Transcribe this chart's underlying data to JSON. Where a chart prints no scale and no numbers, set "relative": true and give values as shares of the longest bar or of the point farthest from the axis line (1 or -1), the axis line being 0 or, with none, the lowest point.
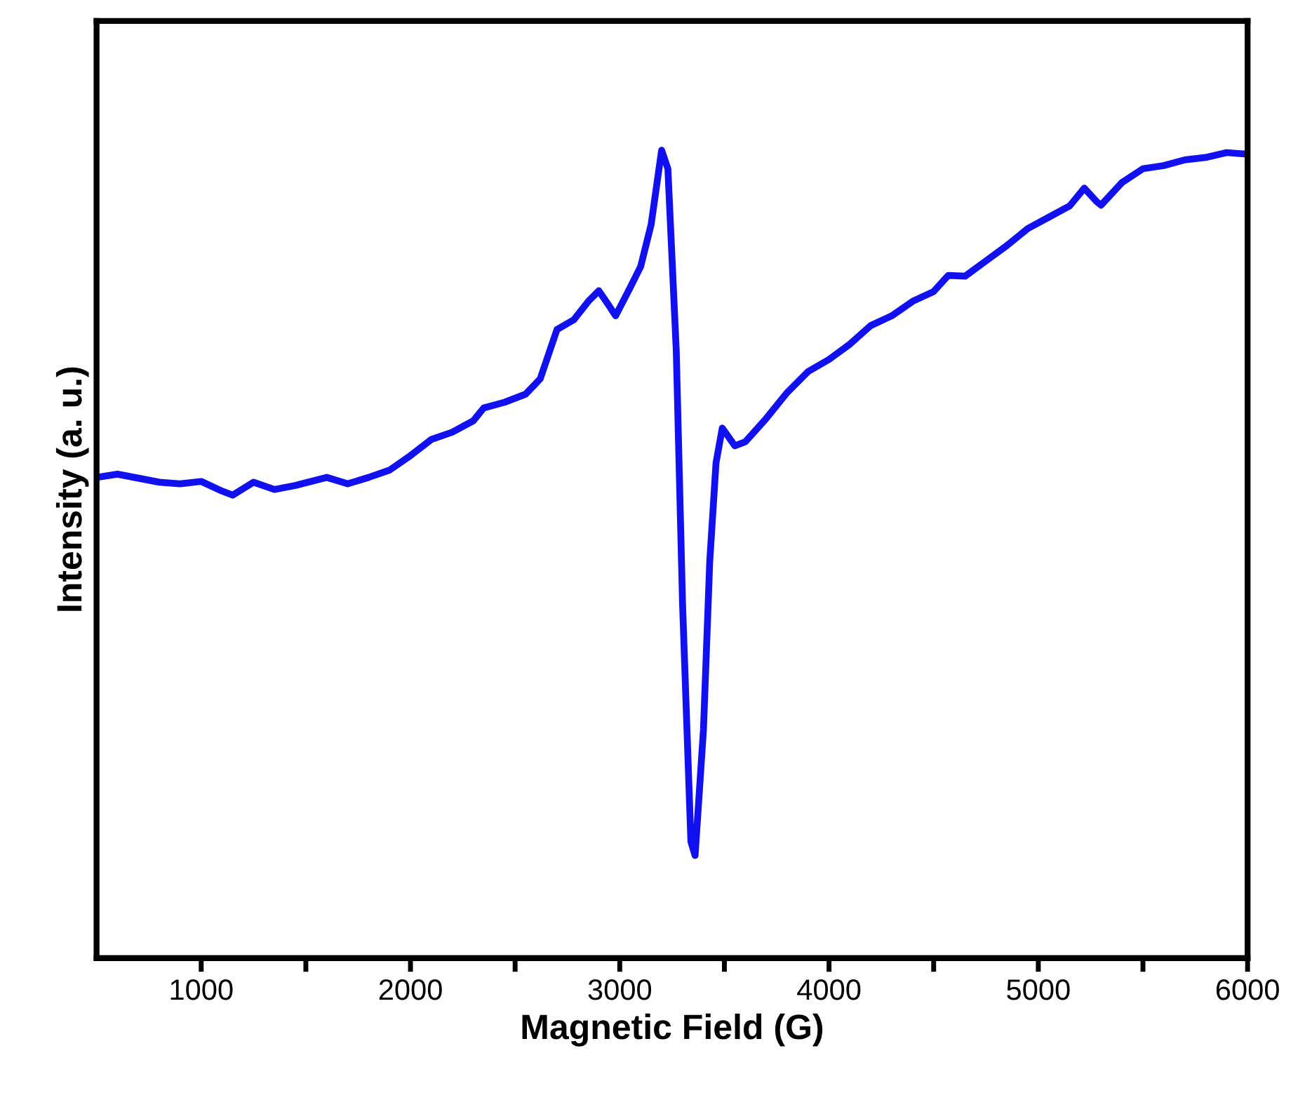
{
  "chart_data": {
    "type": "line",
    "relative": true,
    "xlabel": "Magnetic Field (G)",
    "ylabel": "Intensity (a. u.)",
    "xlim": [
      500,
      6000
    ],
    "xticks": [
      1000,
      {
        "value": 1500,
        "label": null
      },
      2000,
      {
        "value": 2500,
        "label": null
      },
      3000,
      {
        "value": 3500,
        "label": null
      },
      4000,
      {
        "value": 4500,
        "label": null
      },
      5000,
      {
        "value": 5500,
        "label": null
      },
      6000
    ],
    "tick_labels": "x",
    "grid": false,
    "legend": false,
    "marker": "none",
    "line_style": "solid",
    "series": [
      {
        "color": "#1010f0",
        "x": [
          500,
          600,
          700,
          800,
          900,
          1000,
          1100,
          1150,
          1250,
          1350,
          1450,
          1600,
          1700,
          1800,
          1900,
          2000,
          2100,
          2200,
          2300,
          2350,
          2450,
          2550,
          2620,
          2700,
          2780,
          2850,
          2900,
          2950,
          2980,
          3050,
          3100,
          3150,
          3200,
          3230,
          3270,
          3300,
          3340,
          3360,
          3400,
          3430,
          3460,
          3490,
          3550,
          3600,
          3700,
          3800,
          3900,
          4000,
          4100,
          4200,
          4300,
          4400,
          4500,
          4570,
          4650,
          4750,
          4850,
          4950,
          5050,
          5150,
          5220,
          5280,
          5300,
          5400,
          5500,
          5600,
          5700,
          5800,
          5900,
          6000
        ],
        "values": [
          0.595,
          0.599,
          0.594,
          0.589,
          0.587,
          0.59,
          0.578,
          0.573,
          0.589,
          0.58,
          0.585,
          0.595,
          0.587,
          0.595,
          0.604,
          0.622,
          0.642,
          0.651,
          0.665,
          0.681,
          0.688,
          0.698,
          0.717,
          0.778,
          0.79,
          0.813,
          0.826,
          0.807,
          0.795,
          0.83,
          0.856,
          0.908,
          1.0,
          0.977,
          0.752,
          0.439,
          0.144,
          0.127,
          0.283,
          0.491,
          0.613,
          0.656,
          0.634,
          0.639,
          0.668,
          0.7,
          0.726,
          0.741,
          0.76,
          0.783,
          0.795,
          0.813,
          0.825,
          0.845,
          0.844,
          0.863,
          0.882,
          0.903,
          0.917,
          0.931,
          0.953,
          0.936,
          0.932,
          0.96,
          0.977,
          0.981,
          0.988,
          0.991,
          0.997,
          0.995
        ]
      }
    ]
  }
}
